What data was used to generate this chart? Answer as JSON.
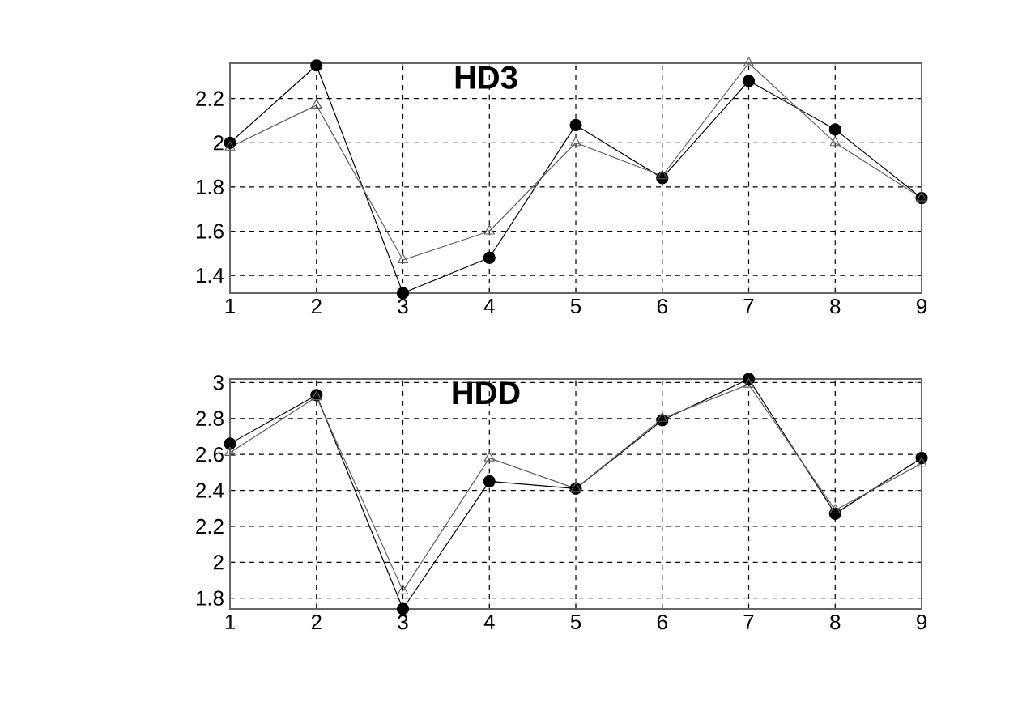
{
  "chart_data": [
    {
      "type": "line",
      "title": "HD3",
      "x": [
        1,
        2,
        3,
        4,
        5,
        6,
        7,
        8,
        9
      ],
      "xlim": [
        1,
        9
      ],
      "xticks": [
        1,
        2,
        3,
        4,
        5,
        6,
        7,
        8,
        9
      ],
      "ylim": [
        1.32,
        2.36
      ],
      "yticks": [
        1.4,
        1.6,
        1.8,
        2,
        2.2
      ],
      "grid": true,
      "line_style": "solid",
      "series": [
        {
          "color": "#000000",
          "marker": "circle",
          "values": [
            2.0,
            2.35,
            1.32,
            1.48,
            2.08,
            1.84,
            2.28,
            2.06,
            1.75
          ]
        },
        {
          "color": "#606060",
          "marker": "triangle",
          "values": [
            1.98,
            2.17,
            1.47,
            1.6,
            2.0,
            1.85,
            2.36,
            2.0,
            1.75
          ]
        }
      ]
    },
    {
      "type": "line",
      "title": "HDD",
      "x": [
        1,
        2,
        3,
        4,
        5,
        6,
        7,
        8,
        9
      ],
      "xlim": [
        1,
        9
      ],
      "xticks": [
        1,
        2,
        3,
        4,
        5,
        6,
        7,
        8,
        9
      ],
      "ylim": [
        1.74,
        3.02
      ],
      "yticks": [
        1.8,
        2,
        2.2,
        2.4,
        2.6,
        2.8,
        3
      ],
      "grid": true,
      "line_style": "solid",
      "series": [
        {
          "color": "#000000",
          "marker": "circle",
          "values": [
            2.66,
            2.93,
            1.74,
            2.45,
            2.41,
            2.79,
            3.02,
            2.27,
            2.58
          ]
        },
        {
          "color": "#606060",
          "marker": "triangle",
          "values": [
            2.61,
            2.92,
            1.84,
            2.58,
            2.41,
            2.8,
            2.99,
            2.29,
            2.55
          ]
        }
      ]
    }
  ]
}
